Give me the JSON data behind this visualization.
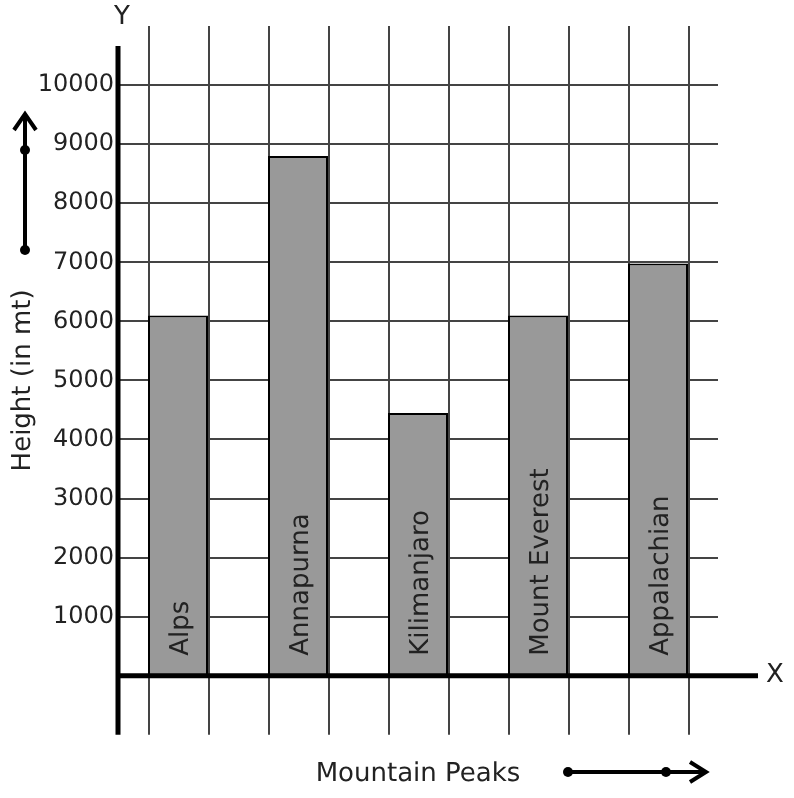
{
  "chart_data": {
    "type": "bar",
    "xlabel": "Mountain Peaks",
    "ylabel": "Height (in mt)",
    "categories": [
      "Alps",
      "Annapurna",
      "Kilimanjaro",
      "Mount Everest",
      "Appalachian"
    ],
    "values": [
      6100,
      8800,
      4450,
      6100,
      6980
    ],
    "color": "#999999",
    "ylim": [
      -1000,
      11000
    ],
    "yticks": [
      {
        "value": 0,
        "label": null
      },
      1000,
      2000,
      3000,
      4000,
      5000,
      6000,
      7000,
      8000,
      9000,
      10000
    ],
    "grid": true,
    "annotations": [
      "X",
      "Y"
    ]
  }
}
